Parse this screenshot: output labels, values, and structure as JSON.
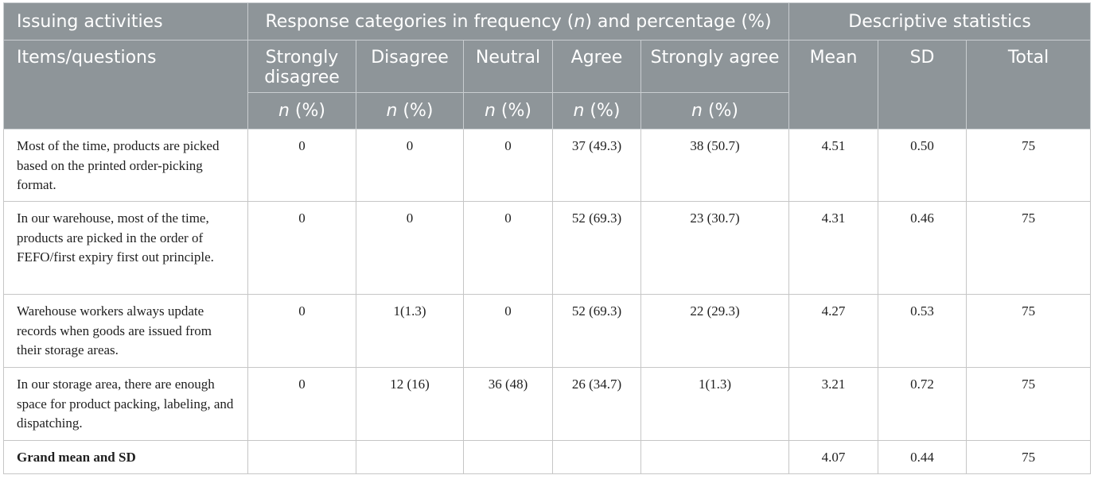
{
  "header": {
    "row1": {
      "issuing": "Issuing activities",
      "response": "Response categories in frequency (n) and percentage (%)",
      "descriptive": "Descriptive statistics"
    },
    "row2": {
      "items": "Items/questions",
      "strongly_disagree": "Strongly disagree",
      "disagree": "Disagree",
      "neutral": "Neutral",
      "agree": "Agree",
      "strongly_agree": "Strongly agree",
      "mean": "Mean",
      "sd": "SD",
      "total": "Total"
    },
    "row3": {
      "np": "n (%)"
    }
  },
  "rows": [
    {
      "item": "Most of the time, products are picked based on the printed order-picking format.",
      "strongly_disagree": "0",
      "disagree": "0",
      "neutral": "0",
      "agree": "37 (49.3)",
      "strongly_agree": "38 (50.7)",
      "mean": "4.51",
      "sd": "0.50",
      "total": "75"
    },
    {
      "item": "In our warehouse, most of the time, products are picked in the order of FEFO/first expiry first out principle.",
      "strongly_disagree": "0",
      "disagree": "0",
      "neutral": "0",
      "agree": "52 (69.3)",
      "strongly_agree": "23 (30.7)",
      "mean": "4.31",
      "sd": "0.46",
      "total": "75"
    },
    {
      "item": "Warehouse workers always update records when goods are issued from their storage areas.",
      "strongly_disagree": "0",
      "disagree": "1(1.3)",
      "neutral": "0",
      "agree": "52 (69.3)",
      "strongly_agree": "22 (29.3)",
      "mean": "4.27",
      "sd": "0.53",
      "total": "75"
    },
    {
      "item": "In our storage area, there are enough space for product packing, labeling, and dispatching.",
      "strongly_disagree": "0",
      "disagree": "12 (16)",
      "neutral": "36 (48)",
      "agree": "26 (34.7)",
      "strongly_agree": "1(1.3)",
      "mean": "3.21",
      "sd": "0.72",
      "total": "75"
    }
  ],
  "grand": {
    "label": "Grand mean and SD",
    "mean": "4.07",
    "sd": "0.44",
    "total": "75"
  }
}
